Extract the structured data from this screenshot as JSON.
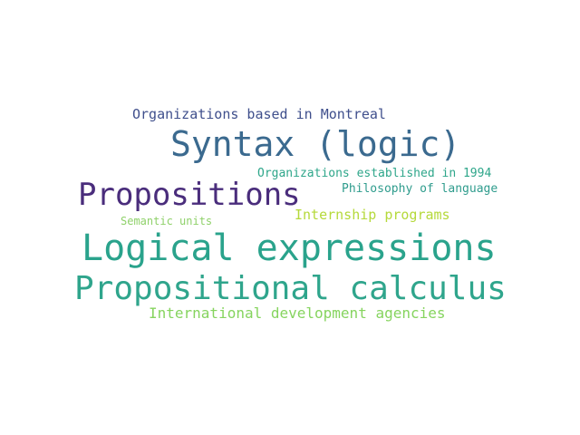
{
  "words": [
    {
      "text": "Organizations based in Montreal",
      "color": "#3f4f8c"
    },
    {
      "text": "Syntax (logic)",
      "color": "#3b6a8f"
    },
    {
      "text": "Organizations established in 1994",
      "color": "#2ea68a"
    },
    {
      "text": "Propositions",
      "color": "#4a2d7c"
    },
    {
      "text": "Philosophy of language",
      "color": "#2f9c8d"
    },
    {
      "text": "Internship programs",
      "color": "#b5d93a"
    },
    {
      "text": "Semantic units",
      "color": "#8fd16a"
    },
    {
      "text": "Logical expressions",
      "color": "#2aa38c"
    },
    {
      "text": "Propositional calculus",
      "color": "#2fa58c"
    },
    {
      "text": "International development agencies",
      "color": "#86d45f"
    }
  ]
}
